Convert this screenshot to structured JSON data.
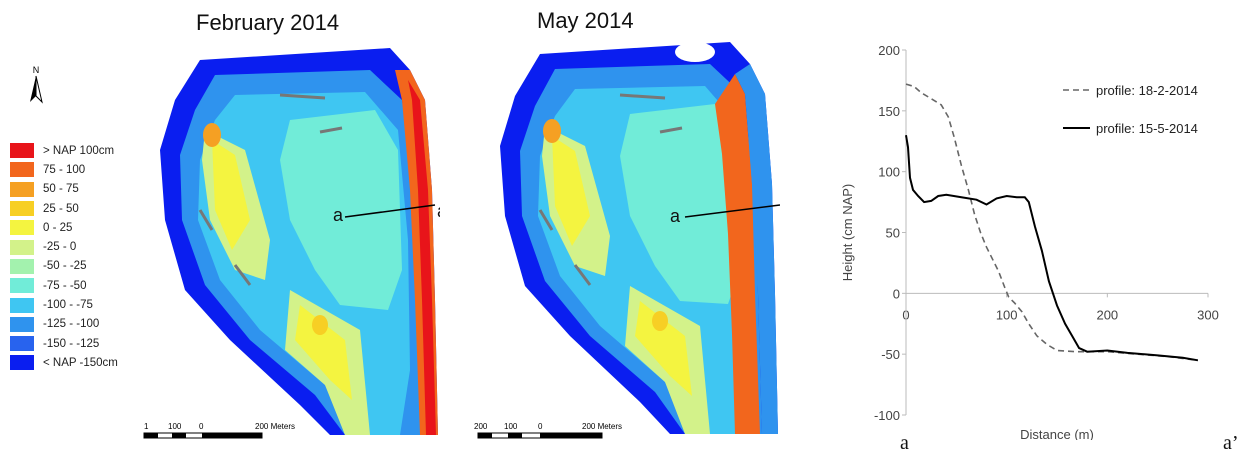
{
  "maps": {
    "left_title": "February 2014",
    "right_title": "May 2014",
    "profile_start": "a",
    "profile_end": "a’",
    "north_label": "N",
    "scale_left": {
      "labels": [
        "1",
        "100",
        "0",
        "200 Meters"
      ]
    },
    "scale_right": {
      "labels": [
        "200",
        "100",
        "0",
        "200 Meters"
      ]
    }
  },
  "legend": {
    "items": [
      {
        "label": "> NAP 100cm",
        "color": "#e8141a"
      },
      {
        "label": "75 - 100",
        "color": "#f2661d"
      },
      {
        "label": "50 - 75",
        "color": "#f5a023"
      },
      {
        "label": "25 - 50",
        "color": "#f7cf24"
      },
      {
        "label": "0 - 25",
        "color": "#f4f440"
      },
      {
        "label": "-25 - 0",
        "color": "#d3f28a"
      },
      {
        "label": "-50 - -25",
        "color": "#a3f2ae"
      },
      {
        "label": "-75 - -50",
        "color": "#71ecd8"
      },
      {
        "label": "-100 - -75",
        "color": "#3fc6f2"
      },
      {
        "label": "-125 - -100",
        "color": "#2f93ee"
      },
      {
        "label": "-150 - -125",
        "color": "#2863ee"
      },
      {
        "label": "< NAP -150cm",
        "color": "#0a1ef0"
      }
    ]
  },
  "chart_data": {
    "type": "line",
    "xlabel": "Distance (m)",
    "ylabel": "Height (cm NAP)",
    "xlim": [
      0,
      300
    ],
    "ylim": [
      -100,
      200
    ],
    "xticks": [
      0,
      100,
      200,
      300
    ],
    "yticks": [
      -100,
      -50,
      0,
      50,
      100,
      150,
      200
    ],
    "x_start_label": "a",
    "x_end_label": "a’",
    "grid": false,
    "legend_position": "top-right",
    "series": [
      {
        "name": "profile: 18-2-2014",
        "style": "dashed",
        "color": "#666666",
        "points": [
          [
            0,
            172
          ],
          [
            8,
            170
          ],
          [
            15,
            165
          ],
          [
            25,
            160
          ],
          [
            35,
            155
          ],
          [
            42,
            145
          ],
          [
            48,
            128
          ],
          [
            55,
            105
          ],
          [
            62,
            85
          ],
          [
            68,
            65
          ],
          [
            74,
            50
          ],
          [
            80,
            38
          ],
          [
            86,
            28
          ],
          [
            92,
            18
          ],
          [
            98,
            5
          ],
          [
            102,
            -3
          ],
          [
            108,
            -8
          ],
          [
            115,
            -15
          ],
          [
            122,
            -25
          ],
          [
            130,
            -35
          ],
          [
            140,
            -42
          ],
          [
            150,
            -47
          ],
          [
            170,
            -48
          ],
          [
            200,
            -48
          ],
          [
            230,
            -50
          ],
          [
            260,
            -52
          ],
          [
            290,
            -55
          ]
        ]
      },
      {
        "name": "profile: 15-5-2014",
        "style": "solid",
        "color": "#000000",
        "points": [
          [
            0,
            130
          ],
          [
            2,
            120
          ],
          [
            4,
            95
          ],
          [
            7,
            85
          ],
          [
            12,
            80
          ],
          [
            18,
            75
          ],
          [
            25,
            76
          ],
          [
            32,
            80
          ],
          [
            40,
            81
          ],
          [
            55,
            79
          ],
          [
            70,
            77
          ],
          [
            80,
            73
          ],
          [
            90,
            78
          ],
          [
            100,
            80
          ],
          [
            110,
            79
          ],
          [
            118,
            79
          ],
          [
            122,
            75
          ],
          [
            128,
            55
          ],
          [
            135,
            35
          ],
          [
            142,
            10
          ],
          [
            150,
            -10
          ],
          [
            158,
            -25
          ],
          [
            165,
            -35
          ],
          [
            172,
            -45
          ],
          [
            180,
            -48
          ],
          [
            200,
            -47
          ],
          [
            220,
            -49
          ],
          [
            250,
            -51
          ],
          [
            275,
            -53
          ],
          [
            290,
            -55
          ]
        ]
      }
    ]
  }
}
